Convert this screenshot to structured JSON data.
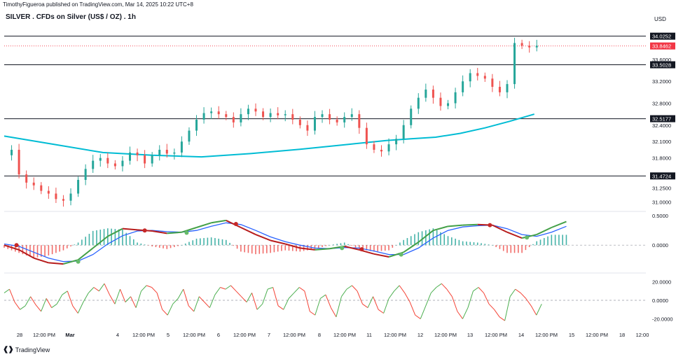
{
  "publisher_line": "TimothyFigueroa published on TradingView.com, Mar 14, 2025 10:22 UTC+8",
  "symbol_title": "SILVER . CFDs on Silver (US$ / OZ) . 1h",
  "currency_label": "USD",
  "brand": "TradingView",
  "colors": {
    "up": "#26a69a",
    "down": "#ef5350",
    "ma": "#00bcd4",
    "level": "#131722",
    "price_tag": "#f23645",
    "macd_fast_up": "#43a047",
    "macd_fast_down": "#b71c1c",
    "macd_slow": "#2962ff",
    "hist_up": "#26a69a",
    "hist_down": "#ef5350",
    "osc_up": "#4caf50",
    "osc_down": "#f44336"
  },
  "chart_data": [
    {
      "type": "candlestick",
      "title": "SILVER . CFDs on Silver (US$ / OZ) . 1h",
      "ylim": [
        30.85,
        34.2
      ],
      "y_ticks": [
        {
          "v": 34.0252,
          "label": "34.0252"
        },
        {
          "v": 33.6,
          "label": "33.6000"
        },
        {
          "v": 33.5028,
          "label": "33.5028"
        },
        {
          "v": 33.2,
          "label": "33.2000"
        },
        {
          "v": 32.8,
          "label": "32.8000"
        },
        {
          "v": 32.5177,
          "label": "32.5177"
        },
        {
          "v": 32.4,
          "label": "32.4000"
        },
        {
          "v": 32.1,
          "label": "32.1000"
        },
        {
          "v": 31.8,
          "label": "31.8000"
        },
        {
          "v": 31.4724,
          "label": "31.4724"
        },
        {
          "v": 31.25,
          "label": "31.2500"
        },
        {
          "v": 31.0,
          "label": "31.0000"
        }
      ],
      "horizontal_levels": [
        {
          "value": 34.0252,
          "label": "34.0252"
        },
        {
          "value": 33.5028,
          "label": "33.5028"
        },
        {
          "value": 32.5177,
          "label": "32.5177"
        },
        {
          "value": 31.4724,
          "label": "31.4724"
        }
      ],
      "last_price": {
        "value": 33.8462,
        "label": "33.8462"
      },
      "moving_average_path": [
        [
          0,
          32.2
        ],
        [
          20,
          32.05
        ],
        [
          40,
          31.9
        ],
        [
          60,
          31.85
        ],
        [
          80,
          31.82
        ],
        [
          100,
          31.88
        ],
        [
          120,
          31.96
        ],
        [
          140,
          32.05
        ],
        [
          155,
          32.12
        ],
        [
          165,
          32.15
        ],
        [
          175,
          32.18
        ],
        [
          185,
          32.25
        ],
        [
          195,
          32.35
        ],
        [
          205,
          32.47
        ],
        [
          215,
          32.6
        ]
      ],
      "price_path": [
        [
          0,
          31.85
        ],
        [
          3,
          31.95
        ],
        [
          6,
          31.5
        ],
        [
          9,
          31.35
        ],
        [
          12,
          31.3
        ],
        [
          15,
          31.2
        ],
        [
          18,
          31.15
        ],
        [
          21,
          31.05
        ],
        [
          24,
          31.02
        ],
        [
          27,
          31.15
        ],
        [
          30,
          31.4
        ],
        [
          33,
          31.6
        ],
        [
          36,
          31.75
        ],
        [
          39,
          31.8
        ],
        [
          42,
          31.7
        ],
        [
          45,
          31.65
        ],
        [
          48,
          31.75
        ],
        [
          51,
          31.9
        ],
        [
          54,
          31.85
        ],
        [
          57,
          31.7
        ],
        [
          60,
          31.85
        ],
        [
          63,
          31.95
        ],
        [
          66,
          31.88
        ],
        [
          69,
          31.9
        ],
        [
          72,
          32.1
        ],
        [
          75,
          32.3
        ],
        [
          78,
          32.5
        ],
        [
          81,
          32.62
        ],
        [
          84,
          32.65
        ],
        [
          87,
          32.6
        ],
        [
          90,
          32.55
        ],
        [
          93,
          32.45
        ],
        [
          96,
          32.6
        ],
        [
          99,
          32.7
        ],
        [
          102,
          32.65
        ],
        [
          105,
          32.55
        ],
        [
          108,
          32.62
        ],
        [
          111,
          32.58
        ],
        [
          114,
          32.6
        ],
        [
          117,
          32.5
        ],
        [
          120,
          32.4
        ],
        [
          123,
          32.3
        ],
        [
          126,
          32.55
        ],
        [
          129,
          32.6
        ],
        [
          132,
          32.5
        ],
        [
          135,
          32.45
        ],
        [
          138,
          32.55
        ],
        [
          141,
          32.6
        ],
        [
          144,
          32.35
        ],
        [
          147,
          32.05
        ],
        [
          150,
          31.95
        ],
        [
          153,
          31.92
        ],
        [
          156,
          32.05
        ],
        [
          159,
          32.15
        ],
        [
          162,
          32.4
        ],
        [
          165,
          32.7
        ],
        [
          168,
          32.9
        ],
        [
          171,
          33.05
        ],
        [
          174,
          32.9
        ],
        [
          177,
          32.75
        ],
        [
          180,
          32.8
        ],
        [
          183,
          33.0
        ],
        [
          186,
          33.2
        ],
        [
          189,
          33.35
        ],
        [
          192,
          33.3
        ],
        [
          195,
          33.25
        ],
        [
          198,
          33.1
        ],
        [
          201,
          33.0
        ],
        [
          204,
          33.15
        ],
        [
          207,
          33.9
        ],
        [
          210,
          33.85
        ],
        [
          213,
          33.82
        ],
        [
          216,
          33.85
        ]
      ],
      "x_max": 260
    },
    {
      "type": "macd",
      "ylim": [
        -0.45,
        0.55
      ],
      "y_ticks": [
        {
          "v": 0.5,
          "label": "0.5000"
        },
        {
          "v": 0.0,
          "label": "0.0000"
        }
      ],
      "fast_line": [
        [
          0,
          0.0
        ],
        [
          6,
          -0.08
        ],
        [
          12,
          -0.22
        ],
        [
          18,
          -0.3
        ],
        [
          24,
          -0.32
        ],
        [
          30,
          -0.25
        ],
        [
          36,
          -0.05
        ],
        [
          42,
          0.15
        ],
        [
          48,
          0.28
        ],
        [
          54,
          0.26
        ],
        [
          60,
          0.24
        ],
        [
          66,
          0.2
        ],
        [
          72,
          0.22
        ],
        [
          78,
          0.3
        ],
        [
          84,
          0.38
        ],
        [
          90,
          0.42
        ],
        [
          96,
          0.3
        ],
        [
          102,
          0.18
        ],
        [
          108,
          0.08
        ],
        [
          114,
          0.02
        ],
        [
          120,
          -0.05
        ],
        [
          126,
          -0.08
        ],
        [
          132,
          -0.06
        ],
        [
          138,
          -0.02
        ],
        [
          144,
          -0.08
        ],
        [
          150,
          -0.15
        ],
        [
          156,
          -0.2
        ],
        [
          162,
          -0.12
        ],
        [
          168,
          0.05
        ],
        [
          174,
          0.25
        ],
        [
          180,
          0.32
        ],
        [
          186,
          0.34
        ],
        [
          192,
          0.35
        ],
        [
          198,
          0.34
        ],
        [
          204,
          0.22
        ],
        [
          210,
          0.12
        ],
        [
          216,
          0.18
        ],
        [
          222,
          0.3
        ],
        [
          228,
          0.4
        ]
      ],
      "slow_line": [
        [
          0,
          0.02
        ],
        [
          6,
          -0.02
        ],
        [
          12,
          -0.12
        ],
        [
          18,
          -0.22
        ],
        [
          24,
          -0.28
        ],
        [
          30,
          -0.27
        ],
        [
          36,
          -0.16
        ],
        [
          42,
          0.02
        ],
        [
          48,
          0.16
        ],
        [
          54,
          0.24
        ],
        [
          60,
          0.25
        ],
        [
          66,
          0.23
        ],
        [
          72,
          0.22
        ],
        [
          78,
          0.25
        ],
        [
          84,
          0.32
        ],
        [
          90,
          0.38
        ],
        [
          96,
          0.35
        ],
        [
          102,
          0.25
        ],
        [
          108,
          0.14
        ],
        [
          114,
          0.06
        ],
        [
          120,
          0.0
        ],
        [
          126,
          -0.05
        ],
        [
          132,
          -0.06
        ],
        [
          138,
          -0.04
        ],
        [
          144,
          -0.05
        ],
        [
          150,
          -0.1
        ],
        [
          156,
          -0.16
        ],
        [
          162,
          -0.16
        ],
        [
          168,
          -0.05
        ],
        [
          174,
          0.12
        ],
        [
          180,
          0.25
        ],
        [
          186,
          0.31
        ],
        [
          192,
          0.33
        ],
        [
          198,
          0.34
        ],
        [
          204,
          0.28
        ],
        [
          210,
          0.18
        ],
        [
          216,
          0.15
        ],
        [
          222,
          0.22
        ],
        [
          228,
          0.32
        ]
      ],
      "cross_points": [
        {
          "x": 5,
          "y": 0.0,
          "kind": "down"
        },
        {
          "x": 30,
          "y": -0.28,
          "kind": "up"
        },
        {
          "x": 57,
          "y": 0.25,
          "kind": "down"
        },
        {
          "x": 74,
          "y": 0.21,
          "kind": "up"
        },
        {
          "x": 94,
          "y": 0.36,
          "kind": "down"
        },
        {
          "x": 137,
          "y": -0.05,
          "kind": "up"
        },
        {
          "x": 145,
          "y": -0.07,
          "kind": "down"
        },
        {
          "x": 161,
          "y": -0.16,
          "kind": "up"
        },
        {
          "x": 197,
          "y": 0.34,
          "kind": "down"
        },
        {
          "x": 212,
          "y": 0.13,
          "kind": "up"
        }
      ]
    },
    {
      "type": "oscillator",
      "ylim": [
        -28,
        28
      ],
      "y_ticks": [
        {
          "v": 20,
          "label": "20.0000"
        },
        {
          "v": 0,
          "label": "0.0000"
        },
        {
          "v": -20,
          "label": "-20.0000"
        }
      ],
      "values": [
        8,
        12,
        -2,
        -10,
        -6,
        4,
        -5,
        -12,
        2,
        -8,
        -4,
        6,
        10,
        -6,
        -14,
        -2,
        8,
        14,
        10,
        18,
        6,
        -4,
        12,
        -2,
        4,
        -8,
        10,
        16,
        14,
        8,
        -10,
        -16,
        -4,
        2,
        12,
        -6,
        -12,
        4,
        -2,
        -8,
        6,
        14,
        12,
        16,
        10,
        4,
        -2,
        8,
        -10,
        -4,
        12,
        14,
        -6,
        -10,
        2,
        8,
        14,
        10,
        -12,
        -16,
        2,
        6,
        -8,
        -18,
        4,
        12,
        16,
        10,
        -4,
        -8,
        4,
        -10,
        -14,
        2,
        10,
        16,
        8,
        -2,
        -16,
        -20,
        -6,
        8,
        14,
        18,
        12,
        4,
        -12,
        -20,
        -8,
        10,
        14,
        8,
        -4,
        -10,
        -18,
        -22,
        4,
        12,
        8,
        2,
        -6,
        -16,
        -4
      ]
    }
  ],
  "time_axis": {
    "labels": [
      "28",
      "12:00 PM",
      "Mar",
      "4",
      "12:00 PM",
      "5",
      "12:00 PM",
      "6",
      "12:00 PM",
      "7",
      "12:00 PM",
      "8",
      "12:00 PM",
      "11",
      "12:00 PM",
      "12",
      "12:00 PM",
      "13",
      "12:00 PM",
      "14",
      "12:00 PM",
      "15",
      "12:00 PM",
      "18",
      "12:00"
    ],
    "bold": [
      "Mar"
    ]
  }
}
